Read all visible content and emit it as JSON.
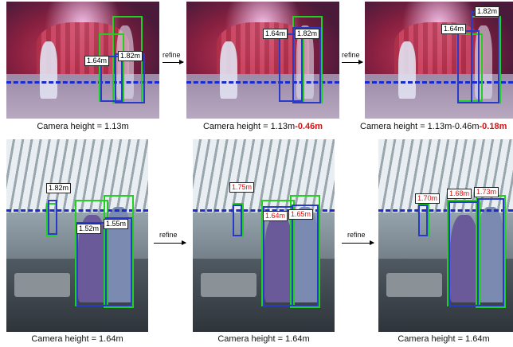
{
  "rows": [
    {
      "panels": [
        {
          "labels": [
            "1.64m",
            "1.82m"
          ],
          "label_colors": [
            "black",
            "black"
          ]
        },
        {
          "labels": [
            "1.64m",
            "1.82m"
          ],
          "label_colors": [
            "black",
            "black"
          ]
        },
        {
          "labels": [
            "1.64m",
            "1.82m"
          ],
          "label_colors": [
            "black",
            "black"
          ]
        }
      ],
      "captions": [
        {
          "base": "Camera height = 1.13m",
          "delta": ""
        },
        {
          "base": "Camera height = 1.13m",
          "delta": "-0.46m"
        },
        {
          "base": "Camera height = 1.13m-0.46m",
          "delta": "-0.18m"
        }
      ]
    },
    {
      "panels": [
        {
          "labels": [
            "1.82m",
            "1.52m",
            "1.55m"
          ],
          "label_colors": [
            "black",
            "black",
            "black"
          ]
        },
        {
          "labels": [
            "1.75m",
            "1.64m",
            "1.65m"
          ],
          "label_colors": [
            "red",
            "red",
            "red"
          ]
        },
        {
          "labels": [
            "1.70m",
            "1.68m",
            "1.73m"
          ],
          "label_colors": [
            "red",
            "red",
            "red"
          ]
        }
      ],
      "captions": [
        {
          "base": "Camera height = 1.64m",
          "delta": ""
        },
        {
          "base": "Camera height = 1.64m",
          "delta": ""
        },
        {
          "base": "Camera height = 1.64m",
          "delta": ""
        }
      ]
    }
  ],
  "arrow_label": "refine",
  "colors": {
    "gt_box": "#22d022",
    "pred_box": "#2a3ac8",
    "horizon": "#1a2acc",
    "refined_text": "#e01010"
  }
}
